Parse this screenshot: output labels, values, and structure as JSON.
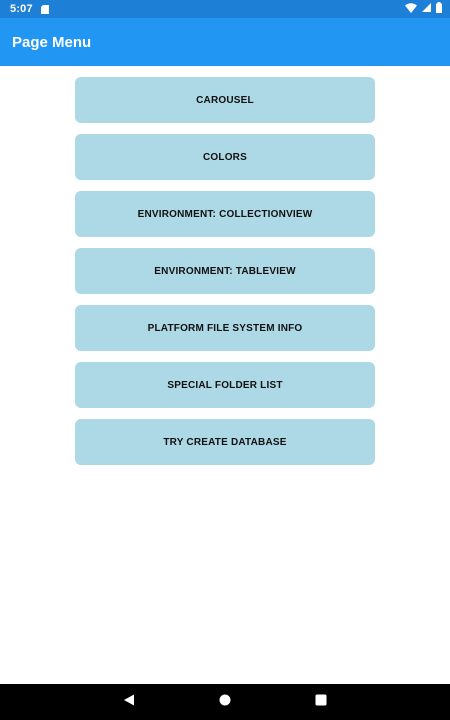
{
  "status_bar": {
    "time": "5:07",
    "icons": [
      "sd-card-icon",
      "wifi-icon",
      "signal-icon",
      "battery-icon"
    ]
  },
  "app_bar": {
    "title": "Page Menu"
  },
  "menu": {
    "items": [
      {
        "label": "CAROUSEL"
      },
      {
        "label": "COLORS"
      },
      {
        "label": "ENVIRONMENT: COLLECTIONVIEW"
      },
      {
        "label": "ENVIRONMENT: TABLEVIEW"
      },
      {
        "label": "PLATFORM FILE SYSTEM INFO"
      },
      {
        "label": "SPECIAL FOLDER LIST"
      },
      {
        "label": "TRY CREATE DATABASE"
      }
    ]
  },
  "nav_bar": {
    "buttons": [
      "back-icon",
      "home-icon",
      "recents-icon"
    ]
  },
  "colors": {
    "status_bar": "#1e7fd6",
    "app_bar": "#2196f3",
    "button_background": "#add8e6",
    "nav_bar": "#000000"
  }
}
